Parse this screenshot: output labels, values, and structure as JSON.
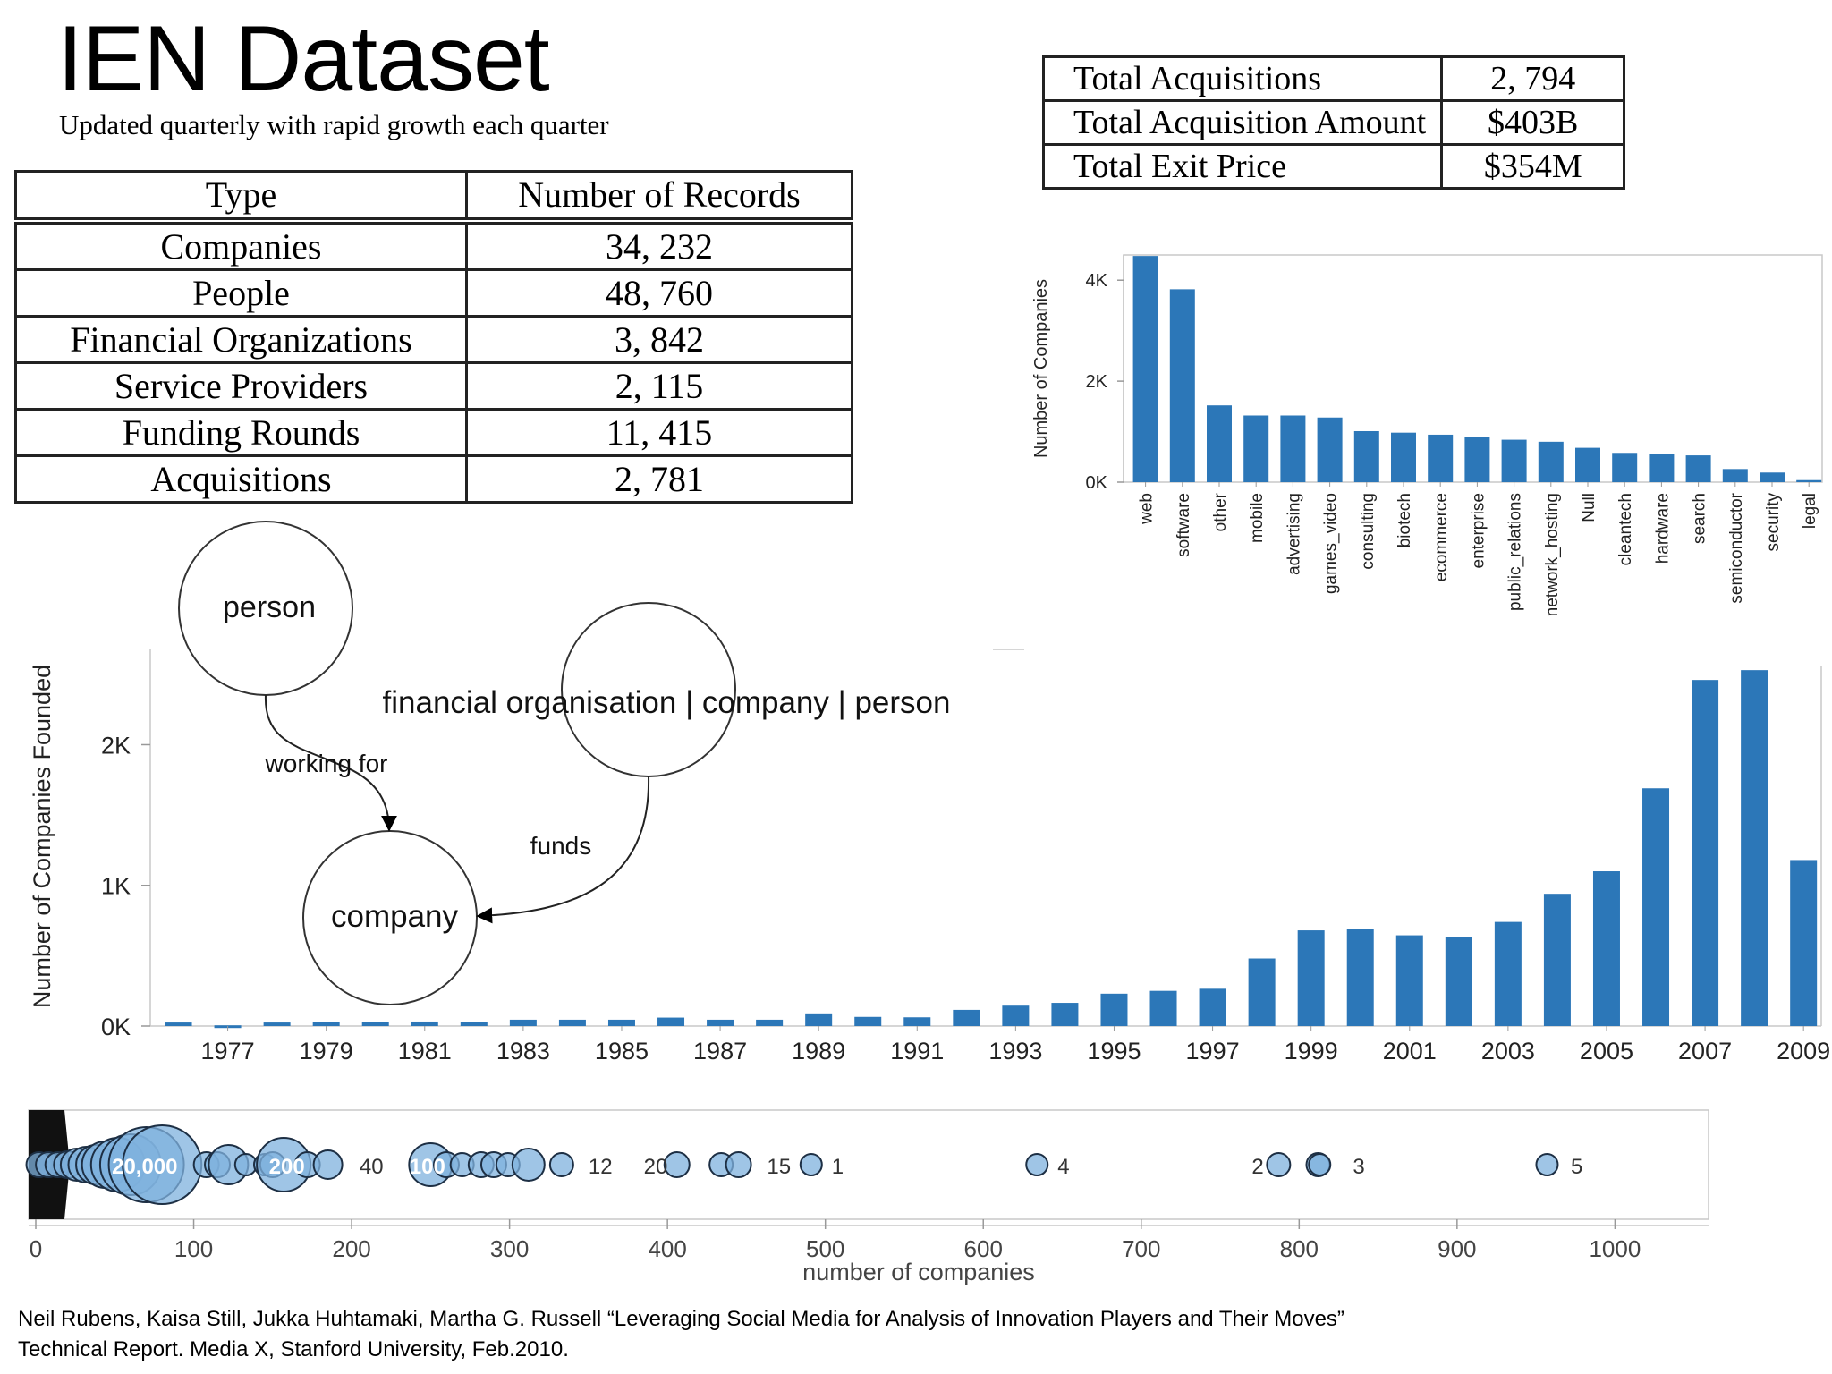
{
  "title": "IEN Dataset",
  "subtitle": "Updated quarterly with rapid growth each quarter",
  "records_table": {
    "headers": [
      "Type",
      "Number of Records"
    ],
    "rows": [
      [
        "Companies",
        "34, 232"
      ],
      [
        "People",
        "48, 760"
      ],
      [
        "Financial Organizations",
        "3, 842"
      ],
      [
        "Service Providers",
        "2, 115"
      ],
      [
        "Funding Rounds",
        "11, 415"
      ],
      [
        "Acquisitions",
        "2, 781"
      ]
    ]
  },
  "acquisitions_table": {
    "rows": [
      [
        "Total Acquisitions",
        "2, 794"
      ],
      [
        "Total Acquisition Amount",
        "$403B"
      ],
      [
        "Total Exit Price",
        "$354M"
      ]
    ]
  },
  "diagram": {
    "nodes": [
      "person",
      "financial organisation | company | person",
      "company"
    ],
    "edges": [
      "working for",
      "funds"
    ]
  },
  "chart_data": [
    {
      "type": "bar",
      "ylabel": "Number of Companies",
      "xlabel": "",
      "ylim": [
        0,
        4500
      ],
      "yticks": [
        "0K",
        "2K",
        "4K"
      ],
      "ytick_values": [
        0,
        2000,
        4000
      ],
      "categories": [
        "web",
        "software",
        "other",
        "mobile",
        "advertising",
        "games_video",
        "consulting",
        "biotech",
        "ecommerce",
        "enterprise",
        "public_relations",
        "network_hosting",
        "Null",
        "cleantech",
        "hardware",
        "search",
        "semiconductor",
        "security",
        "legal"
      ],
      "values": [
        4480,
        3820,
        1520,
        1320,
        1320,
        1280,
        1010,
        980,
        940,
        900,
        840,
        800,
        680,
        580,
        560,
        530,
        260,
        190,
        40
      ],
      "color": "#2c77b8",
      "grid": false
    },
    {
      "type": "bar",
      "ylabel": "Number of Companies Founded",
      "xlabel": "",
      "ylim": [
        0,
        2550
      ],
      "yticks": [
        "0K",
        "1K",
        "2K"
      ],
      "ytick_values": [
        0,
        1000,
        2000
      ],
      "categories": [
        "1976",
        "1977",
        "1978",
        "1979",
        "1980",
        "1981",
        "1982",
        "1983",
        "1984",
        "1985",
        "1986",
        "1987",
        "1988",
        "1989",
        "1990",
        "1991",
        "1992",
        "1993",
        "1994",
        "1995",
        "1996",
        "1997",
        "1998",
        "1999",
        "2000",
        "2001",
        "2002",
        "2003",
        "2004",
        "2005",
        "2006",
        "2007",
        "2008",
        "2009"
      ],
      "xtick_labels": [
        "1977",
        "1979",
        "1981",
        "1983",
        "1985",
        "1987",
        "1989",
        "1991",
        "1993",
        "1995",
        "1997",
        "1999",
        "2001",
        "2003",
        "2005",
        "2007",
        "2009"
      ],
      "values": [
        25,
        5,
        25,
        30,
        28,
        32,
        30,
        45,
        45,
        45,
        60,
        45,
        45,
        90,
        65,
        62,
        115,
        145,
        165,
        230,
        250,
        265,
        480,
        680,
        690,
        645,
        630,
        740,
        940,
        1100,
        1690,
        2460,
        2530,
        1180
      ],
      "color": "#2c77b8",
      "grid": false
    },
    {
      "type": "scatter",
      "xlabel": "number of companies",
      "xlim": [
        0,
        1040
      ],
      "xticks": [
        0,
        100,
        200,
        300,
        400,
        500,
        600,
        700,
        800,
        900,
        1000
      ],
      "points": [
        {
          "x": 2,
          "r": 14
        },
        {
          "x": 8,
          "r": 14
        },
        {
          "x": 14,
          "r": 14
        },
        {
          "x": 20,
          "r": 15
        },
        {
          "x": 26,
          "r": 18
        },
        {
          "x": 32,
          "r": 20
        },
        {
          "x": 38,
          "r": 22
        },
        {
          "x": 44,
          "r": 26
        },
        {
          "x": 52,
          "r": 30
        },
        {
          "x": 60,
          "r": 34
        },
        {
          "x": 70,
          "r": 42
        },
        {
          "x": 80,
          "r": 44
        },
        {
          "x": 108,
          "r": 14
        },
        {
          "x": 115,
          "r": 14
        },
        {
          "x": 122,
          "r": 22
        },
        {
          "x": 133,
          "r": 12
        },
        {
          "x": 145,
          "r": 12
        },
        {
          "x": 150,
          "r": 14
        },
        {
          "x": 157,
          "r": 30
        },
        {
          "x": 172,
          "r": 14
        },
        {
          "x": 185,
          "r": 16
        },
        {
          "x": 250,
          "r": 24
        },
        {
          "x": 260,
          "r": 14
        },
        {
          "x": 270,
          "r": 13
        },
        {
          "x": 282,
          "r": 14
        },
        {
          "x": 290,
          "r": 14
        },
        {
          "x": 299,
          "r": 13
        },
        {
          "x": 312,
          "r": 18
        },
        {
          "x": 333,
          "r": 13
        },
        {
          "x": 406,
          "r": 14
        },
        {
          "x": 434,
          "r": 13
        },
        {
          "x": 445,
          "r": 14
        },
        {
          "x": 491,
          "r": 12
        },
        {
          "x": 634,
          "r": 12
        },
        {
          "x": 787,
          "r": 13
        },
        {
          "x": 812,
          "r": 13
        },
        {
          "x": 813,
          "r": 12
        },
        {
          "x": 957,
          "r": 12
        }
      ],
      "labels": [
        {
          "text": "20,000",
          "x": 69
        },
        {
          "text": "200",
          "x": 159
        },
        {
          "text": "40",
          "x": 205
        },
        {
          "text": "100",
          "x": 248
        },
        {
          "text": "12",
          "x": 350
        },
        {
          "text": "20",
          "x": 385
        },
        {
          "text": "15",
          "x": 463
        },
        {
          "text": "1",
          "x": 504
        },
        {
          "text": "4",
          "x": 647
        },
        {
          "text": "2",
          "x": 770
        },
        {
          "text": "3",
          "x": 834
        },
        {
          "text": "5",
          "x": 972
        }
      ],
      "color": "#7fb1dd"
    }
  ],
  "citation": {
    "line1": "Neil Rubens, Kaisa Still, Jukka Huhtamaki, Martha G. Russell “Leveraging Social Media for Analysis of Innovation Players and Their Moves”",
    "line2": "Technical Report.  Media X, Stanford University, Feb.2010."
  }
}
